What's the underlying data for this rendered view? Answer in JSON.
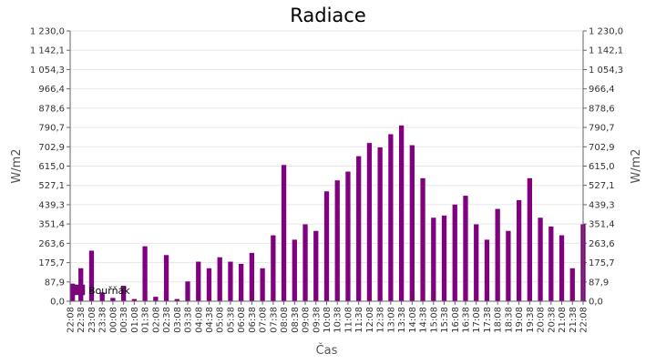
{
  "chart_data": {
    "type": "bar",
    "title": "Radiace",
    "xlabel": "Čas",
    "ylabel": "W/m2",
    "ylim": [
      0,
      1230
    ],
    "y_ticks": [
      "0,0",
      "87,9",
      "175,7",
      "263,6",
      "351,4",
      "439,3",
      "527,1",
      "615,0",
      "702,9",
      "790,7",
      "878,6",
      "966,4",
      "1 054,3",
      "1 142,1",
      "1 230,0"
    ],
    "x_ticks": [
      "22:08",
      "22:38",
      "23:08",
      "23:38",
      "00:08",
      "00:38",
      "01:08",
      "01:38",
      "02:08",
      "02:38",
      "03:08",
      "03:38",
      "04:08",
      "04:38",
      "05:08",
      "05:38",
      "06:08",
      "06:38",
      "07:08",
      "07:38",
      "08:08",
      "08:38",
      "09:08",
      "09:38",
      "10:08",
      "10:38",
      "11:08",
      "11:38",
      "12:08",
      "12:38",
      "13:08",
      "13:38",
      "14:08",
      "14:38",
      "15:08",
      "15:38",
      "16:08",
      "16:38",
      "17:08",
      "17:38",
      "18:08",
      "18:38",
      "19:08",
      "19:38",
      "20:08",
      "20:38",
      "21:08",
      "21:38",
      "22:08"
    ],
    "grid": true,
    "legend_position": "bottom-left",
    "series": [
      {
        "name": "Bouřňák",
        "color": "#800080",
        "x": [
          "22:08",
          "22:38",
          "23:08",
          "23:38",
          "00:08",
          "00:38",
          "01:08",
          "01:38",
          "02:08",
          "02:38",
          "03:08",
          "03:38",
          "04:08",
          "04:38",
          "05:08",
          "05:38",
          "06:08",
          "06:38",
          "07:08",
          "07:38",
          "08:08",
          "08:38",
          "09:08",
          "09:38",
          "10:08",
          "10:38",
          "11:08",
          "11:38",
          "12:08",
          "12:38",
          "13:08",
          "13:38",
          "14:08",
          "14:38",
          "15:08",
          "15:38",
          "16:08",
          "16:38",
          "17:08",
          "17:38",
          "18:08",
          "18:38",
          "19:08",
          "19:38",
          "20:08",
          "20:38",
          "21:08",
          "21:38",
          "22:08"
        ],
        "values": [
          80,
          150,
          230,
          40,
          15,
          70,
          10,
          250,
          20,
          210,
          10,
          90,
          180,
          150,
          200,
          180,
          170,
          220,
          150,
          300,
          620,
          280,
          350,
          320,
          500,
          550,
          590,
          660,
          720,
          700,
          760,
          800,
          710,
          560,
          380,
          390,
          440,
          480,
          350,
          280,
          420,
          320,
          460,
          560,
          380,
          340,
          300,
          150,
          350
        ]
      }
    ]
  }
}
